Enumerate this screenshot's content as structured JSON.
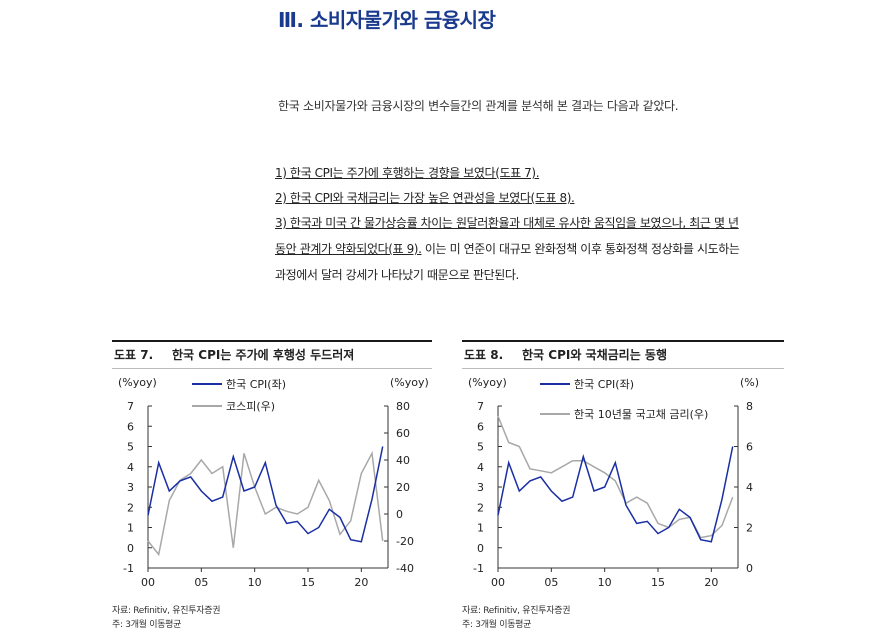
{
  "section": {
    "title": "Ⅲ. 소비자물가와 금융시장"
  },
  "intro": "한국 소비자물가와 금융시장의 변수들간의 관계를 분석해 본 결과는 다음과 같았다.",
  "findings": {
    "f1": "1) 한국 CPI는 주가에 후행하는 경향을 보였다(도표 7).",
    "f2": "2) 한국 CPI와 국채금리는 가장 높은 연관성을 보였다(도표 8).",
    "f3_under": "3) 한국과 미국 간 물가상승률 차이는 원달러환율과 대체로 유사한 움직임을 보였으나, 최근 몇 년",
    "f3_under2": "동안 관계가 약화되었다(표 9).",
    "f3_rest": " 이는 미 연준이 대규모 완화정책 이후 통화정책 정상화를 시도하는",
    "f3_last": "과정에서 달러 강세가 나타났기 때문으로 판단된다."
  },
  "figures": [
    {
      "number": "도표 7.",
      "title": "한국 CPI는 주가에 후행성 두드러져",
      "source": "자료: Refinitiv, 유진투자증권",
      "note": "주: 3개월 이동평균",
      "left_unit": "(%yoy)",
      "right_unit": "(%yoy)",
      "legend": [
        "한국 CPI(좌)",
        "코스피(우)"
      ]
    },
    {
      "number": "도표 8.",
      "title": "한국 CPI와 국채금리는 동행",
      "source": "자료: Refinitiv, 유진투자증권",
      "note": "주: 3개월 이동평균",
      "left_unit": "(%yoy)",
      "right_unit": "(%)",
      "legend": [
        "한국 CPI(좌)",
        "한국 10년물 국고채 금리(우)"
      ]
    }
  ],
  "colors": {
    "cpi": "#1a2fa3",
    "other": "#a8a8a8",
    "title": "#1a3a8f"
  },
  "chart_data": [
    {
      "type": "line",
      "title": "한국 CPI는 주가에 후행성 두드러져",
      "x": [
        0,
        1,
        2,
        3,
        4,
        5,
        6,
        7,
        8,
        9,
        10,
        11,
        12,
        13,
        14,
        15,
        16,
        17,
        18,
        19,
        20,
        21,
        22
      ],
      "xticks": [
        "00",
        "05",
        "10",
        "15",
        "20"
      ],
      "ylim_left": [
        -1,
        7
      ],
      "yticks_left": [
        -1,
        0,
        1,
        2,
        3,
        4,
        5,
        6,
        7
      ],
      "ylim_right": [
        -40,
        80
      ],
      "yticks_right": [
        -40,
        -20,
        0,
        20,
        40,
        60,
        80
      ],
      "series": [
        {
          "name": "한국 CPI(좌)",
          "axis": "left",
          "values": [
            1.6,
            4.2,
            2.8,
            3.3,
            3.5,
            2.8,
            2.3,
            2.5,
            4.5,
            2.8,
            3.0,
            4.2,
            2.1,
            1.2,
            1.3,
            0.7,
            1.0,
            1.9,
            1.5,
            0.4,
            0.3,
            2.4,
            5.0
          ]
        },
        {
          "name": "코스피(우)",
          "axis": "right",
          "values": [
            -20,
            -30,
            10,
            25,
            30,
            40,
            30,
            35,
            -25,
            45,
            20,
            0,
            5,
            2,
            0,
            5,
            25,
            10,
            -15,
            -5,
            30,
            45,
            -20
          ]
        }
      ]
    },
    {
      "type": "line",
      "title": "한국 CPI와 국채금리는 동행",
      "x": [
        0,
        1,
        2,
        3,
        4,
        5,
        6,
        7,
        8,
        9,
        10,
        11,
        12,
        13,
        14,
        15,
        16,
        17,
        18,
        19,
        20,
        21,
        22
      ],
      "xticks": [
        "00",
        "05",
        "10",
        "15",
        "20"
      ],
      "ylim_left": [
        -1,
        7
      ],
      "yticks_left": [
        -1,
        0,
        1,
        2,
        3,
        4,
        5,
        6,
        7
      ],
      "ylim_right": [
        0,
        8
      ],
      "yticks_right": [
        0,
        2,
        4,
        6,
        8
      ],
      "series": [
        {
          "name": "한국 CPI(좌)",
          "axis": "left",
          "values": [
            1.6,
            4.2,
            2.8,
            3.3,
            3.5,
            2.8,
            2.3,
            2.5,
            4.5,
            2.8,
            3.0,
            4.2,
            2.1,
            1.2,
            1.3,
            0.7,
            1.0,
            1.9,
            1.5,
            0.4,
            0.3,
            2.4,
            5.0
          ]
        },
        {
          "name": "한국 10년물 국고채 금리(우)",
          "axis": "right",
          "values": [
            7.5,
            6.2,
            6.0,
            4.9,
            4.8,
            4.7,
            5.0,
            5.3,
            5.3,
            5.0,
            4.7,
            4.3,
            3.2,
            3.5,
            3.2,
            2.2,
            2.0,
            2.4,
            2.5,
            1.5,
            1.6,
            2.1,
            3.5
          ]
        }
      ]
    }
  ]
}
